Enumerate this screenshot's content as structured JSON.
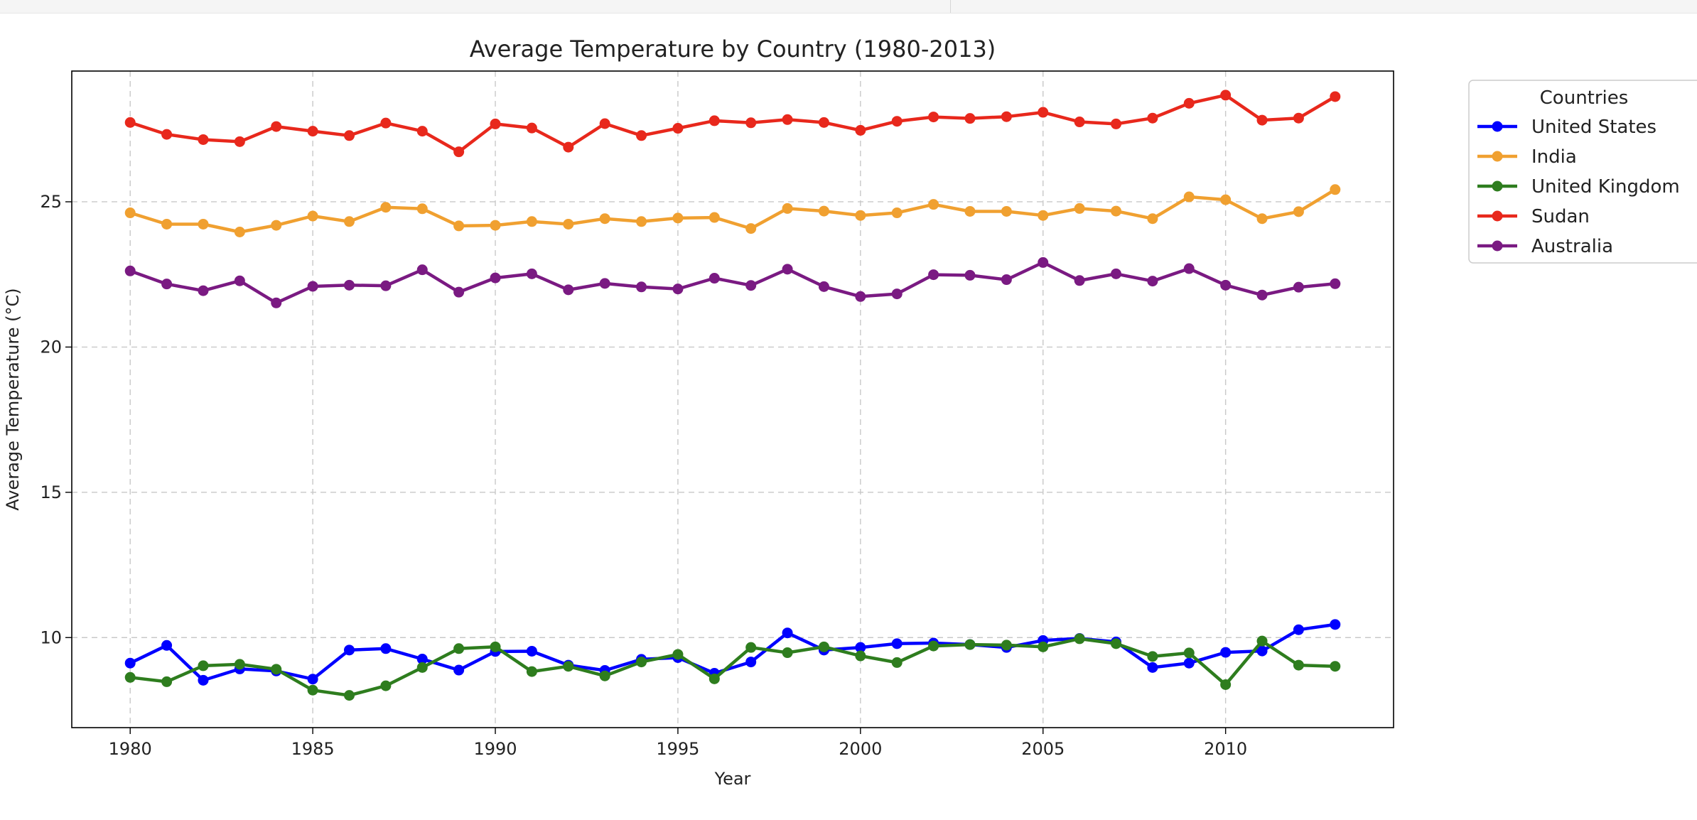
{
  "chart_data": {
    "type": "line",
    "title": "Average Temperature by Country (1980-2013)",
    "xlabel": "Year",
    "ylabel": "Average Temperature (°C)",
    "xlim": [
      1978.4,
      2014.6
    ],
    "ylim": [
      6.9,
      29.5
    ],
    "xticks": [
      1980,
      1985,
      1990,
      1995,
      2000,
      2005,
      2010
    ],
    "yticks": [
      10,
      15,
      20,
      25
    ],
    "grid": true,
    "legend": {
      "title": "Countries",
      "placement": "outside-right"
    },
    "x": [
      1980,
      1981,
      1982,
      1983,
      1984,
      1985,
      1986,
      1987,
      1988,
      1989,
      1990,
      1991,
      1992,
      1993,
      1994,
      1995,
      1996,
      1997,
      1998,
      1999,
      2000,
      2001,
      2002,
      2003,
      2004,
      2005,
      2006,
      2007,
      2008,
      2009,
      2010,
      2011,
      2012,
      2013
    ],
    "series": [
      {
        "name": "United States",
        "color": "#0000ff",
        "values": [
          9.12,
          9.73,
          8.53,
          8.92,
          8.85,
          8.57,
          9.57,
          9.62,
          9.26,
          8.88,
          9.52,
          9.53,
          9.05,
          8.87,
          9.25,
          9.31,
          8.77,
          9.16,
          10.16,
          9.57,
          9.66,
          9.79,
          9.81,
          9.76,
          9.66,
          9.9,
          9.97,
          9.85,
          8.97,
          9.12,
          9.49,
          9.54,
          10.27,
          10.45
        ]
      },
      {
        "name": "India",
        "color": "#f0a030",
        "values": [
          24.62,
          24.23,
          24.23,
          23.96,
          24.19,
          24.51,
          24.32,
          24.81,
          24.76,
          24.17,
          24.19,
          24.32,
          24.23,
          24.42,
          24.32,
          24.44,
          24.46,
          24.08,
          24.77,
          24.68,
          24.53,
          24.62,
          24.91,
          24.67,
          24.67,
          24.53,
          24.77,
          24.68,
          24.42,
          25.17,
          25.07,
          24.42,
          24.66,
          25.42
        ]
      },
      {
        "name": "United Kingdom",
        "color": "#2e7d1e",
        "values": [
          8.63,
          8.48,
          9.03,
          9.08,
          8.91,
          8.19,
          8.01,
          8.34,
          8.97,
          9.62,
          9.68,
          8.83,
          9.01,
          8.68,
          9.16,
          9.42,
          8.58,
          9.66,
          9.48,
          9.68,
          9.37,
          9.14,
          9.71,
          9.76,
          9.74,
          9.68,
          9.96,
          9.79,
          9.35,
          9.47,
          8.38,
          9.88,
          9.05,
          9.01
        ]
      },
      {
        "name": "Sudan",
        "color": "#e8281c",
        "values": [
          27.73,
          27.32,
          27.14,
          27.07,
          27.59,
          27.43,
          27.28,
          27.71,
          27.43,
          26.72,
          27.68,
          27.54,
          26.88,
          27.69,
          27.28,
          27.53,
          27.79,
          27.72,
          27.83,
          27.73,
          27.46,
          27.77,
          27.92,
          27.87,
          27.93,
          28.08,
          27.75,
          27.68,
          27.88,
          28.39,
          28.67,
          27.81,
          27.88,
          28.62
        ]
      },
      {
        "name": "Australia",
        "color": "#7a1a82",
        "values": [
          22.62,
          22.17,
          21.94,
          22.28,
          21.52,
          22.09,
          22.13,
          22.11,
          22.66,
          21.89,
          22.38,
          22.52,
          21.97,
          22.19,
          22.07,
          22.0,
          22.37,
          22.12,
          22.68,
          22.08,
          21.74,
          21.83,
          22.49,
          22.47,
          22.32,
          22.91,
          22.29,
          22.52,
          22.27,
          22.7,
          22.13,
          21.79,
          22.06,
          22.18
        ]
      }
    ]
  }
}
